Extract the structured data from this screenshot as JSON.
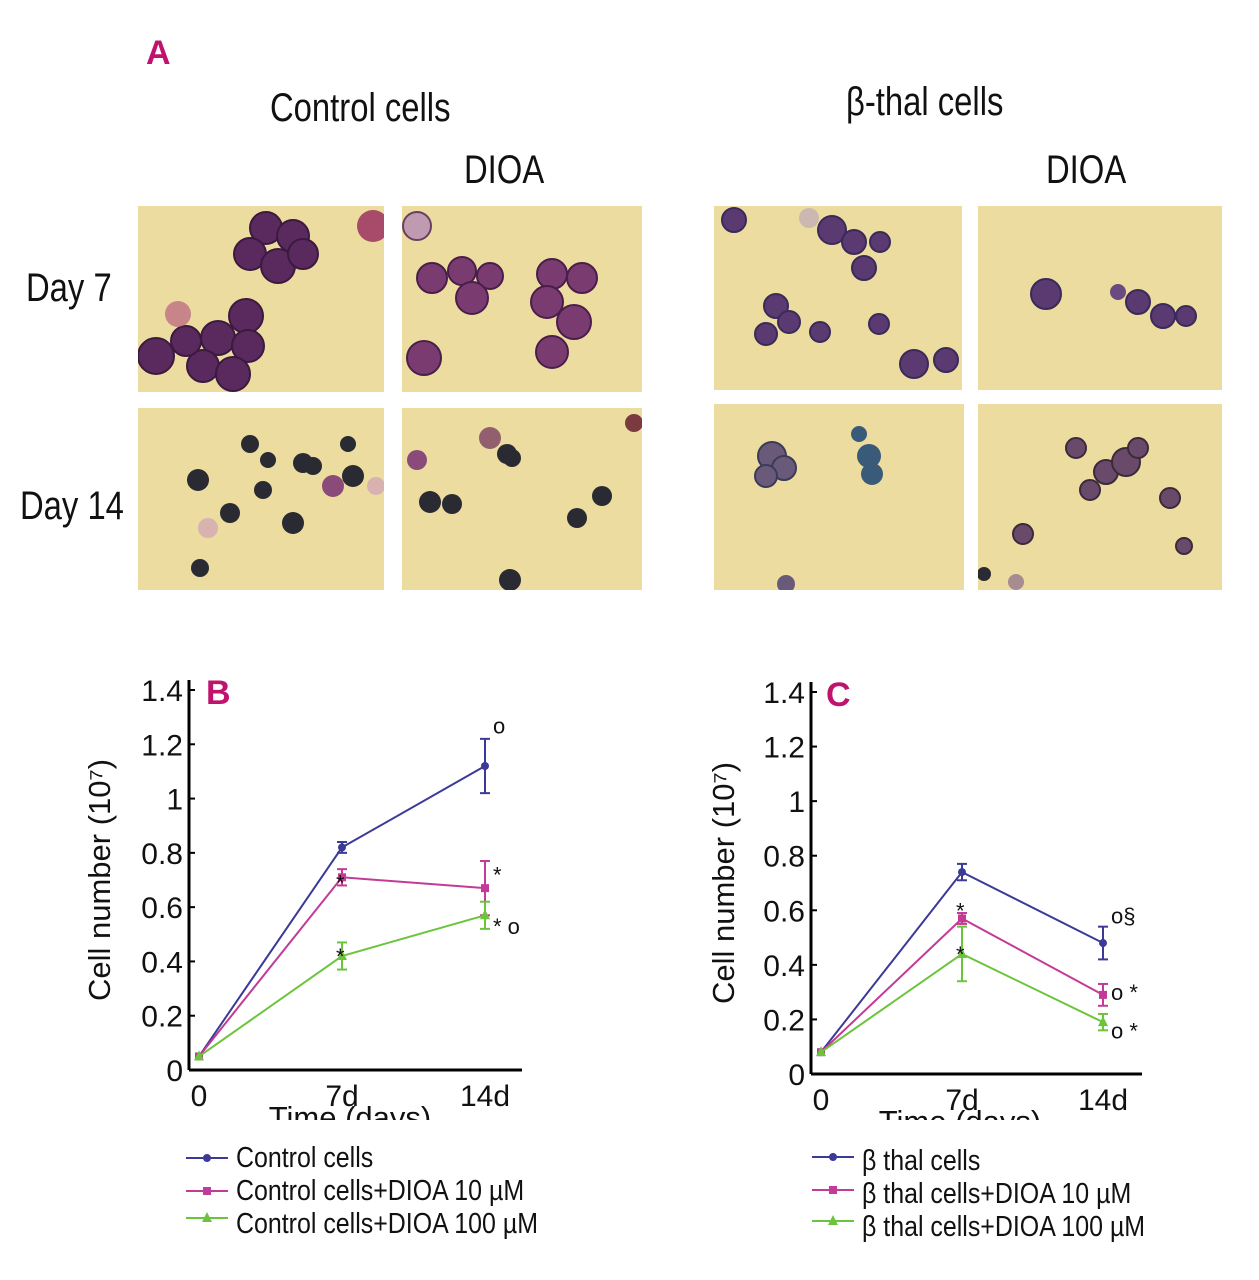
{
  "panel_labels": {
    "a": "A",
    "b": "B",
    "c": "C"
  },
  "panel_a": {
    "group_titles": [
      "Control cells",
      "β-thal cells"
    ],
    "treatment_labels": [
      "DIOA",
      "DIOA"
    ],
    "row_labels": [
      "Day 7",
      "Day 14"
    ]
  },
  "colors": {
    "series1": "#3b3a96",
    "series2": "#c23b96",
    "series3": "#6cc43c",
    "panel_letter": "#c0136e",
    "micro_bg": "#ecdca0"
  },
  "chart_data": [
    {
      "type": "line",
      "panel": "B",
      "title": "B",
      "xlabel": "Time (days)",
      "ylabel": "Cell number (10⁷)",
      "categories": [
        "0",
        "7d",
        "14d"
      ],
      "y_ticks": [
        "0",
        "0.2",
        "0.4",
        "0.6",
        "0.8",
        "1",
        "1.2",
        "1.4"
      ],
      "ylim": [
        0,
        1.4
      ],
      "series": [
        {
          "name": "Control cells",
          "values": [
            0.05,
            0.82,
            1.12
          ],
          "errors": [
            0.01,
            0.02,
            0.1
          ]
        },
        {
          "name": "Control cells+DIOA 10 µM",
          "values": [
            0.05,
            0.71,
            0.67
          ],
          "errors": [
            0.01,
            0.03,
            0.1
          ]
        },
        {
          "name": "Control cells+DIOA 100 µM",
          "values": [
            0.05,
            0.42,
            0.57
          ],
          "errors": [
            0.01,
            0.05,
            0.05
          ]
        }
      ],
      "annotations": [
        {
          "text": "o",
          "x": "14d",
          "y": 1.27
        },
        {
          "text": "*",
          "x": "7d",
          "y": 0.69
        },
        {
          "text": "*",
          "x": "14d",
          "y": 0.72
        },
        {
          "text": "* o",
          "x": "14d",
          "y": 0.53
        },
        {
          "text": "*",
          "x": "7d",
          "y": 0.42
        }
      ]
    },
    {
      "type": "line",
      "panel": "C",
      "title": "C",
      "xlabel": "Time (days)",
      "ylabel": "Cell number (10⁷)",
      "categories": [
        "0",
        "7d",
        "14d"
      ],
      "y_ticks": [
        "0",
        "0.2",
        "0.4",
        "0.6",
        "0.8",
        "1",
        "1.2",
        "1.4"
      ],
      "ylim": [
        0,
        1.4
      ],
      "series": [
        {
          "name": "β thal cells",
          "values": [
            0.08,
            0.74,
            0.48
          ],
          "errors": [
            0.01,
            0.03,
            0.06
          ]
        },
        {
          "name": "β thal cells+DIOA 10 µM",
          "values": [
            0.08,
            0.57,
            0.29
          ],
          "errors": [
            0.01,
            0.02,
            0.04
          ]
        },
        {
          "name": "β thal cells+DIOA 100 µM",
          "values": [
            0.08,
            0.44,
            0.19
          ],
          "errors": [
            0.01,
            0.1,
            0.03
          ]
        }
      ],
      "annotations": [
        {
          "text": "o§",
          "x": "14d",
          "y": 0.58
        },
        {
          "text": "o *",
          "x": "14d",
          "y": 0.3
        },
        {
          "text": "o *",
          "x": "14d",
          "y": 0.16
        },
        {
          "text": "*",
          "x": "7d",
          "y": 0.6
        },
        {
          "text": "*",
          "x": "7d",
          "y": 0.44
        }
      ]
    }
  ]
}
